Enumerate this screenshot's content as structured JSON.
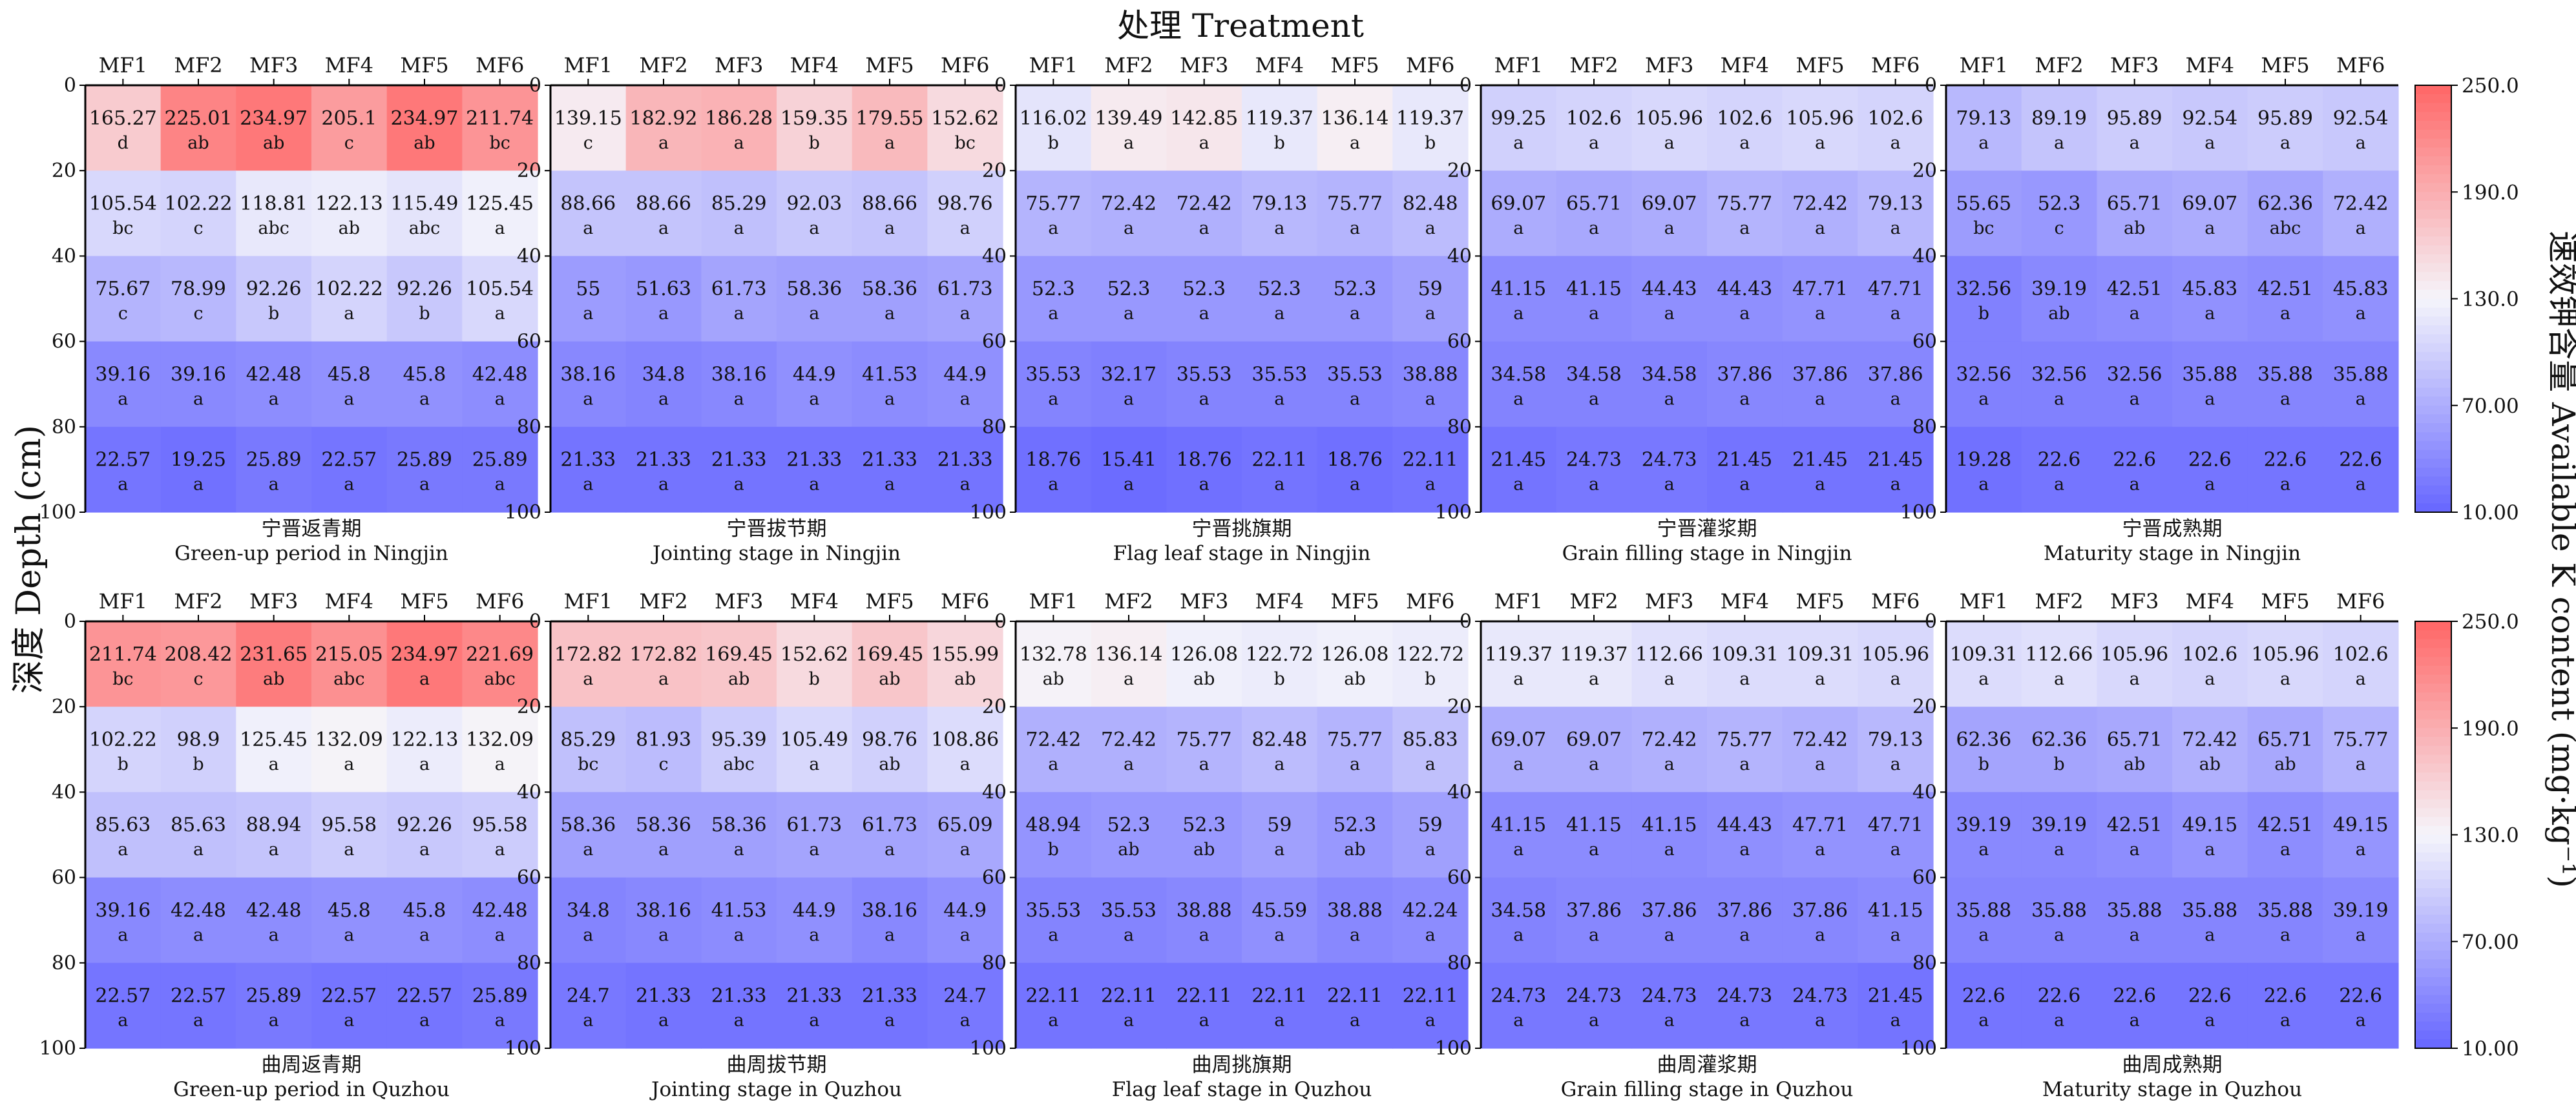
{
  "chart_data": {
    "type": "heatmap",
    "title": "处理 Treatment",
    "ylabel": "深度 Depth (cm)",
    "colorbar": {
      "label": "速效钾含量 Available K content (mg·kg⁻¹)",
      "ticks": [
        "250.0",
        "190.0",
        "130.0",
        "70.00",
        "10.00"
      ],
      "tick_values": [
        250,
        190,
        130,
        70,
        10
      ],
      "range": [
        10,
        250
      ],
      "colors": {
        "low": "#6666ff",
        "mid": "#f5f5fb",
        "high": "#ff6666"
      }
    },
    "treatments": [
      "MF1",
      "MF2",
      "MF3",
      "MF4",
      "MF5",
      "MF6"
    ],
    "depth_ticks": [
      "0",
      "20",
      "40",
      "60",
      "80",
      "100"
    ],
    "panels": [
      {
        "caption_zh": "宁晋返青期",
        "caption_en": "Green-up period in Ningjin",
        "values": [
          [
            165.27,
            225.01,
            234.97,
            205.1,
            234.97,
            211.74
          ],
          [
            105.54,
            102.22,
            118.81,
            122.13,
            115.49,
            125.45
          ],
          [
            75.67,
            78.99,
            92.26,
            102.22,
            92.26,
            105.54
          ],
          [
            39.16,
            39.16,
            42.48,
            45.8,
            45.8,
            42.48
          ],
          [
            22.57,
            19.25,
            25.89,
            22.57,
            25.89,
            25.89
          ]
        ],
        "letters": [
          [
            "d",
            "ab",
            "ab",
            "c",
            "ab",
            "bc"
          ],
          [
            "bc",
            "c",
            "abc",
            "ab",
            "abc",
            "a"
          ],
          [
            "c",
            "c",
            "b",
            "a",
            "b",
            "a"
          ],
          [
            "a",
            "a",
            "a",
            "a",
            "a",
            "a"
          ],
          [
            "a",
            "a",
            "a",
            "a",
            "a",
            "a"
          ]
        ]
      },
      {
        "caption_zh": "宁晋拔节期",
        "caption_en": "Jointing stage in Ningjin",
        "values": [
          [
            139.15,
            182.92,
            186.28,
            159.35,
            179.55,
            152.62
          ],
          [
            88.66,
            88.66,
            85.29,
            92.03,
            88.66,
            98.76
          ],
          [
            55,
            51.63,
            61.73,
            58.36,
            58.36,
            61.73
          ],
          [
            38.16,
            34.8,
            38.16,
            44.9,
            41.53,
            44.9
          ],
          [
            21.33,
            21.33,
            21.33,
            21.33,
            21.33,
            21.33
          ]
        ],
        "letters": [
          [
            "c",
            "a",
            "a",
            "b",
            "a",
            "bc"
          ],
          [
            "a",
            "a",
            "a",
            "a",
            "a",
            "a"
          ],
          [
            "a",
            "a",
            "a",
            "a",
            "a",
            "a"
          ],
          [
            "a",
            "a",
            "a",
            "a",
            "a",
            "a"
          ],
          [
            "a",
            "a",
            "a",
            "a",
            "a",
            "a"
          ]
        ]
      },
      {
        "caption_zh": "宁晋挑旗期",
        "caption_en": "Flag leaf stage in Ningjin",
        "values": [
          [
            116.02,
            139.49,
            142.85,
            119.37,
            136.14,
            119.37
          ],
          [
            75.77,
            72.42,
            72.42,
            79.13,
            75.77,
            82.48
          ],
          [
            52.3,
            52.3,
            52.3,
            52.3,
            52.3,
            59
          ],
          [
            35.53,
            32.17,
            35.53,
            35.53,
            35.53,
            38.88
          ],
          [
            18.76,
            15.41,
            18.76,
            22.11,
            18.76,
            22.11
          ]
        ],
        "letters": [
          [
            "b",
            "a",
            "a",
            "b",
            "a",
            "b"
          ],
          [
            "a",
            "a",
            "a",
            "a",
            "a",
            "a"
          ],
          [
            "a",
            "a",
            "a",
            "a",
            "a",
            "a"
          ],
          [
            "a",
            "a",
            "a",
            "a",
            "a",
            "a"
          ],
          [
            "a",
            "a",
            "a",
            "a",
            "a",
            "a"
          ]
        ]
      },
      {
        "caption_zh": "宁晋灌浆期",
        "caption_en": "Grain filling stage in Ningjin",
        "values": [
          [
            99.25,
            102.6,
            105.96,
            102.6,
            105.96,
            102.6
          ],
          [
            69.07,
            65.71,
            69.07,
            75.77,
            72.42,
            79.13
          ],
          [
            41.15,
            41.15,
            44.43,
            44.43,
            47.71,
            47.71
          ],
          [
            34.58,
            34.58,
            34.58,
            37.86,
            37.86,
            37.86
          ],
          [
            21.45,
            24.73,
            24.73,
            21.45,
            21.45,
            21.45
          ]
        ],
        "letters": [
          [
            "a",
            "a",
            "a",
            "a",
            "a",
            "a"
          ],
          [
            "a",
            "a",
            "a",
            "a",
            "a",
            "a"
          ],
          [
            "a",
            "a",
            "a",
            "a",
            "a",
            "a"
          ],
          [
            "a",
            "a",
            "a",
            "a",
            "a",
            "a"
          ],
          [
            "a",
            "a",
            "a",
            "a",
            "a",
            "a"
          ]
        ]
      },
      {
        "caption_zh": "宁晋成熟期",
        "caption_en": "Maturity stage in Ningjin",
        "values": [
          [
            79.13,
            89.19,
            95.89,
            92.54,
            95.89,
            92.54
          ],
          [
            55.65,
            52.3,
            65.71,
            69.07,
            62.36,
            72.42
          ],
          [
            32.56,
            39.19,
            42.51,
            45.83,
            42.51,
            45.83
          ],
          [
            32.56,
            32.56,
            32.56,
            35.88,
            35.88,
            35.88
          ],
          [
            19.28,
            22.6,
            22.6,
            22.6,
            22.6,
            22.6
          ]
        ],
        "letters": [
          [
            "a",
            "a",
            "a",
            "a",
            "a",
            "a"
          ],
          [
            "bc",
            "c",
            "ab",
            "a",
            "abc",
            "a"
          ],
          [
            "b",
            "ab",
            "a",
            "a",
            "a",
            "a"
          ],
          [
            "a",
            "a",
            "a",
            "a",
            "a",
            "a"
          ],
          [
            "a",
            "a",
            "a",
            "a",
            "a",
            "a"
          ]
        ]
      },
      {
        "caption_zh": "曲周返青期",
        "caption_en": "Green-up period in Quzhou",
        "values": [
          [
            211.74,
            208.42,
            231.65,
            215.05,
            234.97,
            221.69
          ],
          [
            102.22,
            98.9,
            125.45,
            132.09,
            122.13,
            132.09
          ],
          [
            85.63,
            85.63,
            88.94,
            95.58,
            92.26,
            95.58
          ],
          [
            39.16,
            42.48,
            42.48,
            45.8,
            45.8,
            42.48
          ],
          [
            22.57,
            22.57,
            25.89,
            22.57,
            22.57,
            25.89
          ]
        ],
        "letters": [
          [
            "bc",
            "c",
            "ab",
            "abc",
            "a",
            "abc"
          ],
          [
            "b",
            "b",
            "a",
            "a",
            "a",
            "a"
          ],
          [
            "a",
            "a",
            "a",
            "a",
            "a",
            "a"
          ],
          [
            "a",
            "a",
            "a",
            "a",
            "a",
            "a"
          ],
          [
            "a",
            "a",
            "a",
            "a",
            "a",
            "a"
          ]
        ]
      },
      {
        "caption_zh": "曲周拔节期",
        "caption_en": "Jointing stage in Quzhou",
        "values": [
          [
            172.82,
            172.82,
            169.45,
            152.62,
            169.45,
            155.99
          ],
          [
            85.29,
            81.93,
            95.39,
            105.49,
            98.76,
            108.86
          ],
          [
            58.36,
            58.36,
            58.36,
            61.73,
            61.73,
            65.09
          ],
          [
            34.8,
            38.16,
            41.53,
            44.9,
            38.16,
            44.9
          ],
          [
            24.7,
            21.33,
            21.33,
            21.33,
            21.33,
            24.7
          ]
        ],
        "letters": [
          [
            "a",
            "a",
            "ab",
            "b",
            "ab",
            "ab"
          ],
          [
            "bc",
            "c",
            "abc",
            "a",
            "ab",
            "a"
          ],
          [
            "a",
            "a",
            "a",
            "a",
            "a",
            "a"
          ],
          [
            "a",
            "a",
            "a",
            "a",
            "a",
            "a"
          ],
          [
            "a",
            "a",
            "a",
            "a",
            "a",
            "a"
          ]
        ]
      },
      {
        "caption_zh": "曲周挑旗期",
        "caption_en": "Flag leaf stage in Quzhou",
        "values": [
          [
            132.78,
            136.14,
            126.08,
            122.72,
            126.08,
            122.72
          ],
          [
            72.42,
            72.42,
            75.77,
            82.48,
            75.77,
            85.83
          ],
          [
            48.94,
            52.3,
            52.3,
            59,
            52.3,
            59
          ],
          [
            35.53,
            35.53,
            38.88,
            45.59,
            38.88,
            42.24
          ],
          [
            22.11,
            22.11,
            22.11,
            22.11,
            22.11,
            22.11
          ]
        ],
        "letters": [
          [
            "ab",
            "a",
            "ab",
            "b",
            "ab",
            "b"
          ],
          [
            "a",
            "a",
            "a",
            "a",
            "a",
            "a"
          ],
          [
            "b",
            "ab",
            "ab",
            "a",
            "ab",
            "a"
          ],
          [
            "a",
            "a",
            "a",
            "a",
            "a",
            "a"
          ],
          [
            "a",
            "a",
            "a",
            "a",
            "a",
            "a"
          ]
        ]
      },
      {
        "caption_zh": "曲周灌浆期",
        "caption_en": "Grain filling stage in Quzhou",
        "values": [
          [
            119.37,
            119.37,
            112.66,
            109.31,
            109.31,
            105.96
          ],
          [
            69.07,
            69.07,
            72.42,
            75.77,
            72.42,
            79.13
          ],
          [
            41.15,
            41.15,
            41.15,
            44.43,
            47.71,
            47.71
          ],
          [
            34.58,
            37.86,
            37.86,
            37.86,
            37.86,
            41.15
          ],
          [
            24.73,
            24.73,
            24.73,
            24.73,
            24.73,
            21.45
          ]
        ],
        "letters": [
          [
            "a",
            "a",
            "a",
            "a",
            "a",
            "a"
          ],
          [
            "a",
            "a",
            "a",
            "a",
            "a",
            "a"
          ],
          [
            "a",
            "a",
            "a",
            "a",
            "a",
            "a"
          ],
          [
            "a",
            "a",
            "a",
            "a",
            "a",
            "a"
          ],
          [
            "a",
            "a",
            "a",
            "a",
            "a",
            "a"
          ]
        ]
      },
      {
        "caption_zh": "曲周成熟期",
        "caption_en": "Maturity stage in Quzhou",
        "values": [
          [
            109.31,
            112.66,
            105.96,
            102.6,
            105.96,
            102.6
          ],
          [
            62.36,
            62.36,
            65.71,
            72.42,
            65.71,
            75.77
          ],
          [
            39.19,
            39.19,
            42.51,
            49.15,
            42.51,
            49.15
          ],
          [
            35.88,
            35.88,
            35.88,
            35.88,
            35.88,
            39.19
          ],
          [
            22.6,
            22.6,
            22.6,
            22.6,
            22.6,
            22.6
          ]
        ],
        "letters": [
          [
            "a",
            "a",
            "a",
            "a",
            "a",
            "a"
          ],
          [
            "b",
            "b",
            "ab",
            "ab",
            "ab",
            "a"
          ],
          [
            "a",
            "a",
            "a",
            "a",
            "a",
            "a"
          ],
          [
            "a",
            "a",
            "a",
            "a",
            "a",
            "a"
          ],
          [
            "a",
            "a",
            "a",
            "a",
            "a",
            "a"
          ]
        ]
      }
    ]
  }
}
